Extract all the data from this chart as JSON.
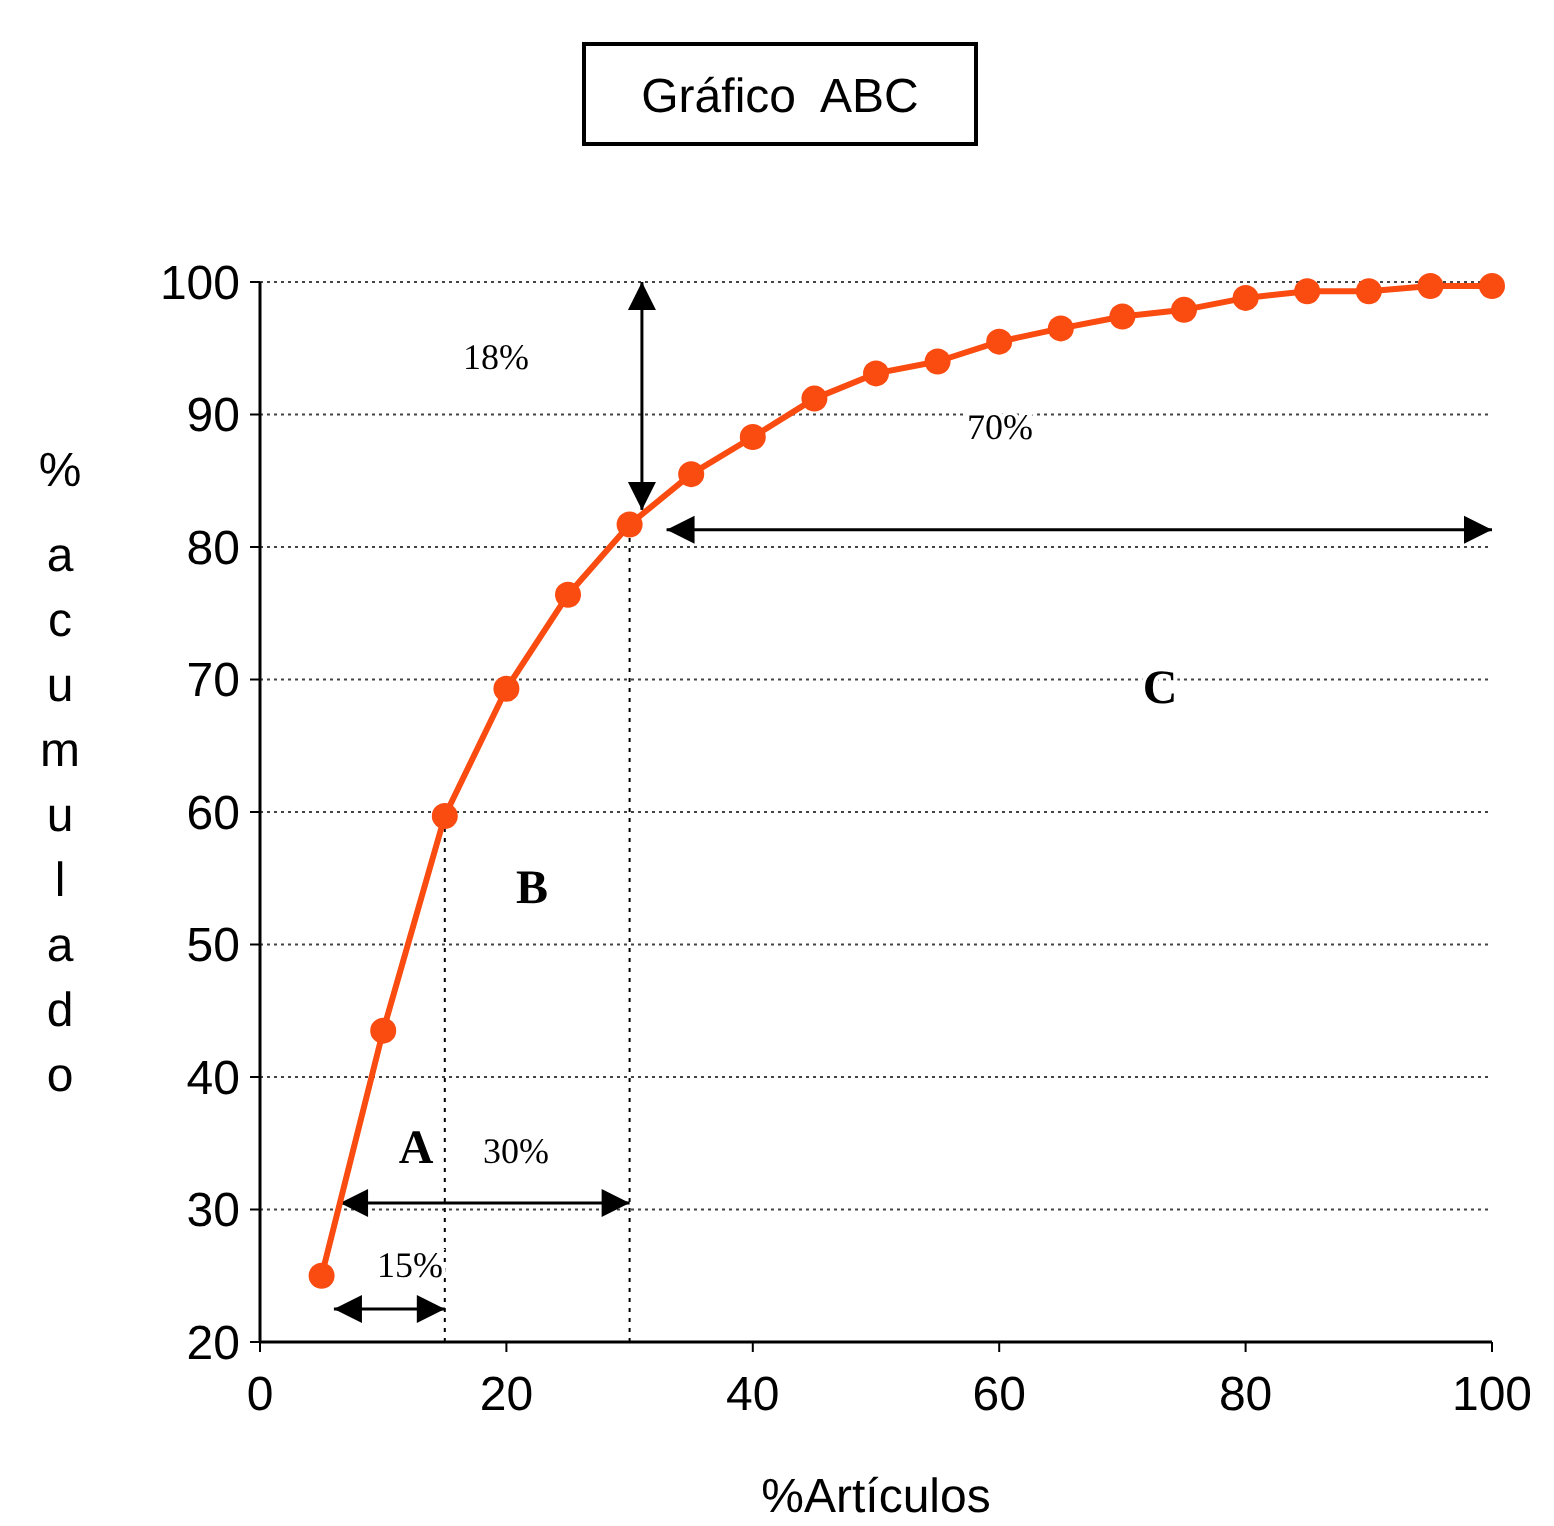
{
  "chart_data": {
    "type": "line",
    "title": "Gráfico  ABC",
    "xlabel": "%Artículos",
    "ylabel": "% acumulado",
    "x": [
      5,
      10,
      15,
      20,
      25,
      30,
      35,
      40,
      45,
      50,
      55,
      60,
      65,
      70,
      75,
      80,
      85,
      90,
      95,
      100
    ],
    "series": [
      {
        "color": "#fa4b10",
        "values": [
          25,
          43.5,
          59.7,
          69.3,
          76.4,
          81.7,
          85.5,
          88.3,
          91.2,
          93.1,
          94,
          95.5,
          96.5,
          97.4,
          97.9,
          98.8,
          99.3,
          99.3,
          99.7,
          99.7
        ]
      }
    ],
    "xlim": [
      0,
      100
    ],
    "ylim": [
      20,
      100
    ],
    "xticks": [
      0,
      20,
      40,
      60,
      80,
      100
    ],
    "yticks": [
      20,
      30,
      40,
      50,
      60,
      70,
      80,
      90,
      100
    ],
    "grid": "y",
    "marker": "circle",
    "line_style": "solid",
    "ref_lines": [
      {
        "axis": "x",
        "value": 15,
        "line_style": "dotted"
      },
      {
        "axis": "x",
        "value": 30,
        "line_style": "dotted"
      }
    ],
    "annotations": [
      "18%",
      "70%",
      "C",
      "B",
      "A",
      "30%",
      "15%"
    ]
  }
}
